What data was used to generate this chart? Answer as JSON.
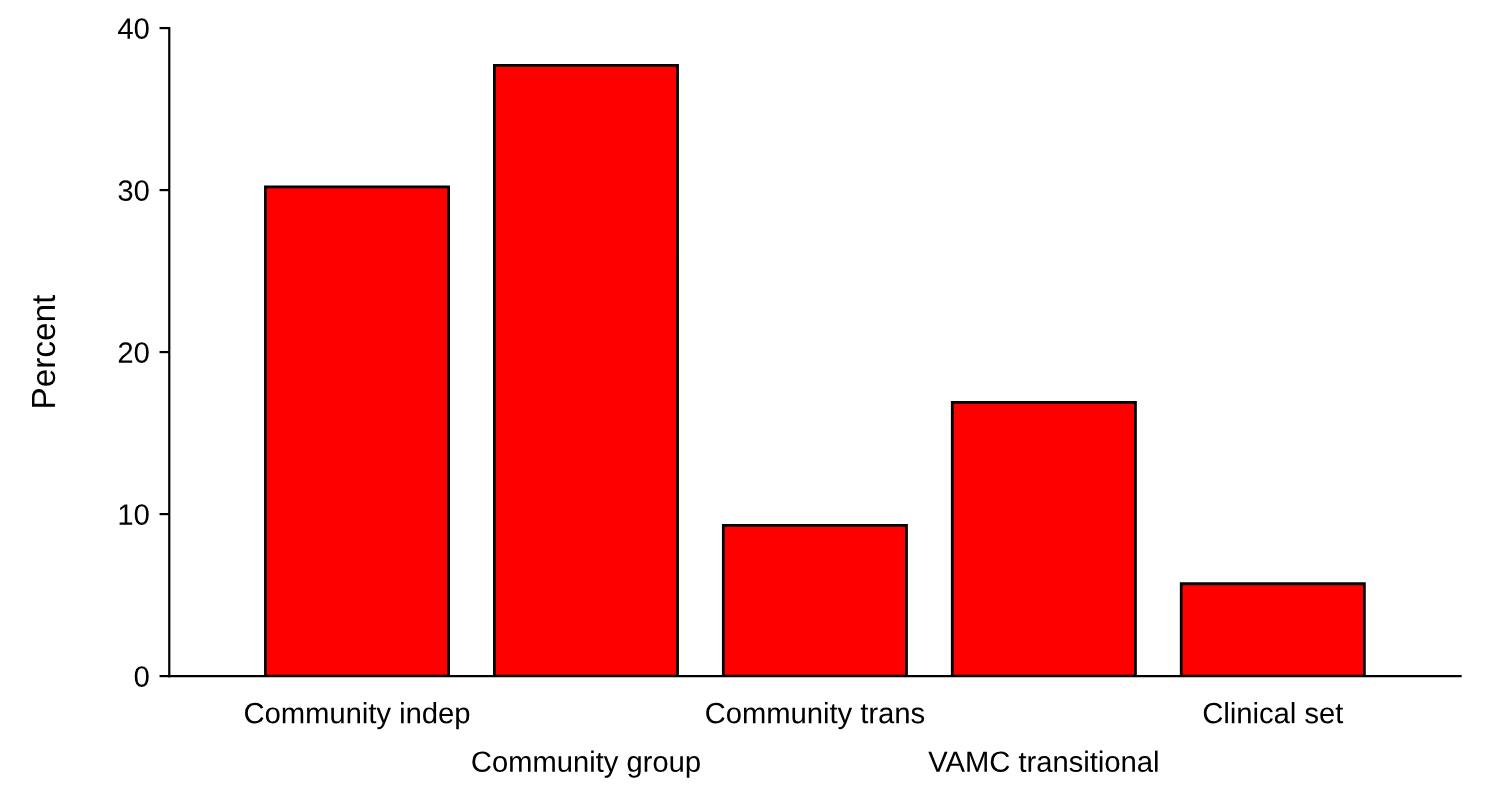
{
  "chart_data": {
    "type": "bar",
    "ylabel": "Percent",
    "categories": [
      "Community indep",
      "Community group",
      "Community trans",
      "VAMC transitional",
      "Clinical set"
    ],
    "values": [
      30.2,
      37.7,
      9.3,
      16.9,
      5.7
    ],
    "color": "#ff0000",
    "ylim": [
      0,
      40
    ],
    "yticks": [
      0,
      10,
      20,
      30,
      40
    ],
    "grid": false
  }
}
